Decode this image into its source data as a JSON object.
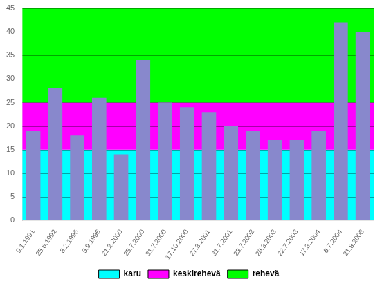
{
  "chart_data": {
    "type": "bar",
    "categories": [
      "9.1.1991",
      "25.6.1992",
      "8.2.1996",
      "9.9.1996",
      "21.2.2000",
      "25.7.2000",
      "31.7.2000",
      "17.10.2000",
      "27.3.2001",
      "31.7.2001",
      "23.7.2002",
      "26.3.2003",
      "22.7.2003",
      "17.3.2004",
      "6.7.2004",
      "21.8.2008"
    ],
    "values": [
      19,
      28,
      18,
      26,
      14,
      34,
      25,
      24,
      23,
      20,
      19,
      17,
      17,
      19,
      42,
      40
    ],
    "color": "#8888cc",
    "bands": [
      {
        "name": "karu",
        "color": "#00ffff",
        "range": [
          0,
          15
        ]
      },
      {
        "name": "keskirehevä",
        "color": "#ff00ff",
        "range": [
          15,
          25
        ]
      },
      {
        "name": "rehevä",
        "color": "#00ff00",
        "range": [
          25,
          45
        ]
      }
    ],
    "ylim": [
      0,
      45
    ],
    "yticks": [
      0,
      5,
      10,
      15,
      20,
      25,
      30,
      35,
      40,
      45
    ],
    "grid": true,
    "legend": "bottom"
  }
}
